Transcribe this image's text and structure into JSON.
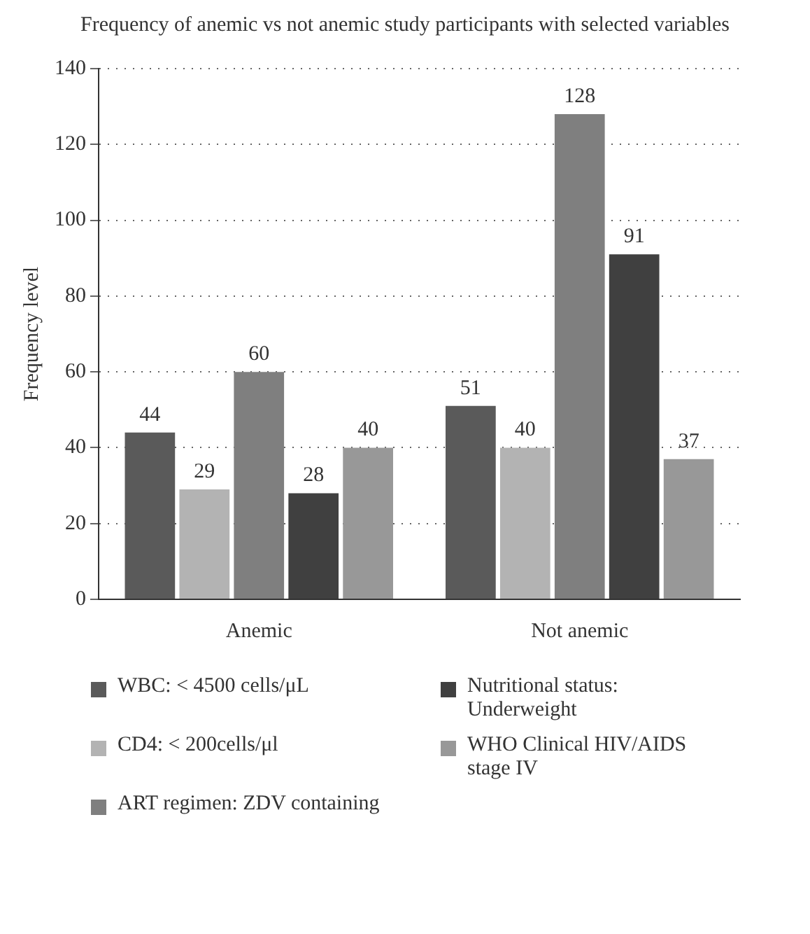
{
  "chart_data": {
    "type": "bar",
    "title": "Frequency of anemic vs not anemic study participants with selected variables",
    "ylabel": "Frequency level",
    "categories": [
      "Anemic",
      "Not anemic"
    ],
    "series": [
      {
        "name": "WBC: < 4500 cells/μL",
        "color": "#5a5a5a",
        "values": [
          44,
          51
        ]
      },
      {
        "name": "CD4: < 200cells/μl",
        "color": "#b3b3b3",
        "values": [
          29,
          40
        ]
      },
      {
        "name": "ART regimen: ZDV containing",
        "color": "#7f7f7f",
        "values": [
          60,
          128
        ]
      },
      {
        "name": "Nutritional status: Underweight",
        "color": "#404040",
        "values": [
          28,
          91
        ]
      },
      {
        "name": "WHO Clinical HIV/AIDS stage IV",
        "color": "#989898",
        "values": [
          40,
          37
        ]
      }
    ],
    "ylim": [
      0,
      140
    ],
    "yticks": [
      0,
      20,
      40,
      60,
      80,
      100,
      120,
      140
    ],
    "grid": "y",
    "legend": "bottom",
    "data_labels": true
  }
}
